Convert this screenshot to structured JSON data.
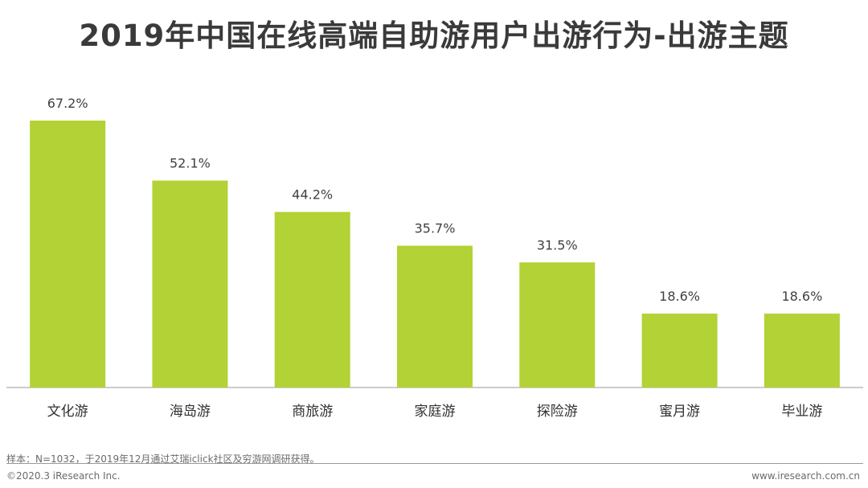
{
  "title": "2019年中国在线高端自助游用户出游行为-出游主题",
  "chart_data": {
    "type": "bar",
    "categories": [
      "文化游",
      "海岛游",
      "商旅游",
      "家庭游",
      "探险游",
      "蜜月游",
      "毕业游"
    ],
    "values": [
      67.2,
      52.1,
      44.2,
      35.7,
      31.5,
      18.6,
      18.6
    ],
    "value_labels": [
      "67.2%",
      "52.1%",
      "44.2%",
      "35.7%",
      "31.5%",
      "18.6%",
      "18.6%"
    ],
    "unit": "%",
    "ylim": [
      0,
      67.2
    ],
    "bar_color": "#b2d235",
    "grid": false,
    "legend": "none"
  },
  "footer": {
    "note": "样本：N=1032，于2019年12月通过艾瑞iclick社区及穷游网调研获得。",
    "copyright": "©2020.3 iResearch Inc.",
    "website": "www.iresearch.com.cn"
  }
}
